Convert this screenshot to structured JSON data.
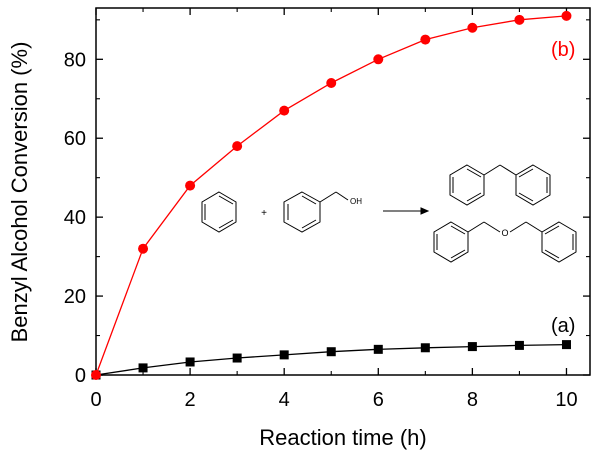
{
  "chart_data": {
    "type": "line",
    "xlabel": "Reaction time (h)",
    "ylabel": "Benzyl Alcohol Conversion (%)",
    "xlim": [
      0,
      10.5
    ],
    "ylim": [
      0,
      93
    ],
    "xticks": [
      0,
      2,
      4,
      6,
      8,
      10
    ],
    "yticks": [
      0,
      20,
      40,
      60,
      80
    ],
    "grid": false,
    "series": [
      {
        "name": "(a)",
        "color": "#000000",
        "marker": "square",
        "x": [
          0,
          1,
          2,
          3,
          4,
          5,
          6,
          7,
          8,
          9,
          10
        ],
        "y": [
          0,
          1.8,
          3.3,
          4.3,
          5.1,
          5.9,
          6.5,
          6.9,
          7.2,
          7.5,
          7.7
        ]
      },
      {
        "name": "(b)",
        "color": "#ff0000",
        "marker": "circle",
        "x": [
          0,
          1,
          2,
          3,
          4,
          5,
          6,
          7,
          8,
          9,
          10
        ],
        "y": [
          0,
          32,
          48,
          58,
          67,
          74,
          80,
          85,
          88,
          90,
          91
        ]
      }
    ],
    "inset": {
      "description_labels": [
        "+",
        "OH",
        "O"
      ]
    }
  }
}
